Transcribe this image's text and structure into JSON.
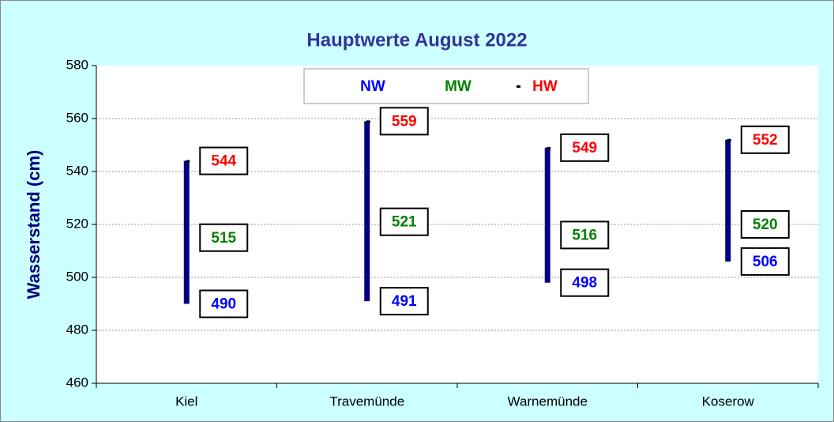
{
  "chart_data": {
    "type": "hilo",
    "title": "Hauptwerte August 2022",
    "y_label": "Wasserstand (cm)",
    "categories": [
      "Kiel",
      "Travemünde",
      "Warnemünde",
      "Koserow"
    ],
    "series": [
      {
        "name": "NW",
        "color": "#0000ff",
        "values": [
          490,
          491,
          498,
          506
        ]
      },
      {
        "name": "MW",
        "color": "#008000",
        "values": [
          515,
          521,
          516,
          520
        ]
      },
      {
        "name": "HW",
        "color": "#ff0000",
        "values": [
          544,
          559,
          549,
          552
        ]
      }
    ],
    "bar_color": "#000080",
    "ylim": [
      460,
      580
    ],
    "yticks": [
      460,
      480,
      500,
      520,
      540,
      560,
      580
    ],
    "grid": true
  }
}
